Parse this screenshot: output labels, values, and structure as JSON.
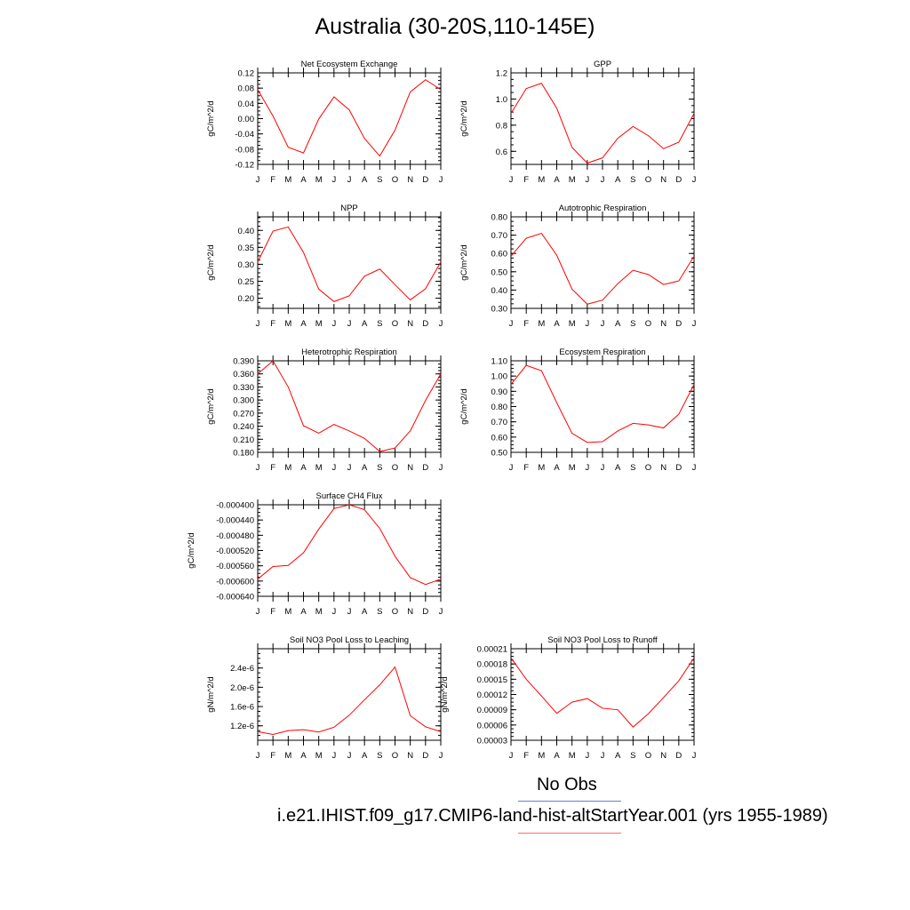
{
  "title": "Australia (30-20S,110-145E)",
  "legend": {
    "obs_label": "No Obs",
    "run_label": "i.e21.IHIST.f09_g17.CMIP6-land-hist-altStartYear.001 (yrs 1955-1989)",
    "obs_color": "#6b7bd6",
    "run_color": "#ff0000"
  },
  "chart_data": [
    {
      "type": "line",
      "title": "Net Ecosystem Exchange",
      "ylabel": "gC/m^2/d",
      "xlabels": [
        "J",
        "F",
        "M",
        "A",
        "M",
        "J",
        "J",
        "A",
        "S",
        "O",
        "N",
        "D",
        "J"
      ],
      "ylim": [
        -0.12,
        0.12
      ],
      "yticks": [
        -0.12,
        -0.08,
        -0.04,
        0.0,
        0.04,
        0.08,
        0.12
      ],
      "ytick_labels": [
        "-0.12",
        "-0.08",
        "-0.04",
        "0.00",
        "0.04",
        "0.08",
        "0.12"
      ],
      "series": [
        {
          "values": [
            0.076,
            0.007,
            -0.075,
            -0.09,
            -0.001,
            0.057,
            0.023,
            -0.052,
            -0.098,
            -0.03,
            0.07,
            0.102,
            0.076
          ]
        }
      ]
    },
    {
      "type": "line",
      "title": "GPP",
      "ylabel": "gC/m^2/d",
      "xlabels": [
        "J",
        "F",
        "M",
        "A",
        "M",
        "J",
        "J",
        "A",
        "S",
        "O",
        "N",
        "D",
        "J"
      ],
      "ylim": [
        0.5,
        1.2
      ],
      "yticks": [
        0.6,
        0.8,
        1.0,
        1.2
      ],
      "ytick_labels": [
        "0.6",
        "0.8",
        "1.0",
        "1.2"
      ],
      "series": [
        {
          "values": [
            0.89,
            1.08,
            1.12,
            0.93,
            0.63,
            0.51,
            0.55,
            0.7,
            0.79,
            0.72,
            0.62,
            0.67,
            0.89
          ]
        }
      ]
    },
    {
      "type": "line",
      "title": "NPP",
      "ylabel": "gC/m^2/d",
      "xlabels": [
        "J",
        "F",
        "M",
        "A",
        "M",
        "J",
        "J",
        "A",
        "S",
        "O",
        "N",
        "D",
        "J"
      ],
      "ylim": [
        0.17,
        0.44
      ],
      "yticks": [
        0.2,
        0.25,
        0.3,
        0.35,
        0.4
      ],
      "ytick_labels": [
        "0.20",
        "0.25",
        "0.30",
        "0.35",
        "0.40"
      ],
      "series": [
        {
          "values": [
            0.307,
            0.398,
            0.41,
            0.335,
            0.227,
            0.19,
            0.207,
            0.265,
            0.286,
            0.24,
            0.195,
            0.228,
            0.307
          ]
        }
      ]
    },
    {
      "type": "line",
      "title": "Autotrophic Respiration",
      "ylabel": "gC/m^2/d",
      "xlabels": [
        "J",
        "F",
        "M",
        "A",
        "M",
        "J",
        "J",
        "A",
        "S",
        "O",
        "N",
        "D",
        "J"
      ],
      "ylim": [
        0.3,
        0.8
      ],
      "yticks": [
        0.3,
        0.4,
        0.5,
        0.6,
        0.7,
        0.8
      ],
      "ytick_labels": [
        "0.30",
        "0.40",
        "0.50",
        "0.60",
        "0.70",
        "0.80"
      ],
      "series": [
        {
          "values": [
            0.585,
            0.683,
            0.71,
            0.59,
            0.405,
            0.323,
            0.345,
            0.435,
            0.508,
            0.485,
            0.43,
            0.45,
            0.585
          ]
        }
      ]
    },
    {
      "type": "line",
      "title": "Heterotrophic Respiration",
      "ylabel": "gC/m^2/d",
      "xlabels": [
        "J",
        "F",
        "M",
        "A",
        "M",
        "J",
        "J",
        "A",
        "S",
        "O",
        "N",
        "D",
        "J"
      ],
      "ylim": [
        0.18,
        0.39
      ],
      "yticks": [
        0.18,
        0.21,
        0.24,
        0.27,
        0.3,
        0.33,
        0.36,
        0.39
      ],
      "ytick_labels": [
        "0.180",
        "0.210",
        "0.240",
        "0.270",
        "0.300",
        "0.330",
        "0.360",
        "0.390"
      ],
      "series": [
        {
          "values": [
            0.36,
            0.39,
            0.33,
            0.241,
            0.224,
            0.244,
            0.229,
            0.212,
            0.182,
            0.19,
            0.229,
            0.299,
            0.36
          ]
        }
      ]
    },
    {
      "type": "line",
      "title": "Ecosystem Respiration",
      "ylabel": "gC/m^2/d",
      "xlabels": [
        "J",
        "F",
        "M",
        "A",
        "M",
        "J",
        "J",
        "A",
        "S",
        "O",
        "N",
        "D",
        "J"
      ],
      "ylim": [
        0.5,
        1.1
      ],
      "yticks": [
        0.5,
        0.6,
        0.7,
        0.8,
        0.9,
        1.0,
        1.1
      ],
      "ytick_labels": [
        "0.50",
        "0.60",
        "0.70",
        "0.80",
        "0.90",
        "1.00",
        "1.10"
      ],
      "series": [
        {
          "values": [
            0.945,
            1.07,
            1.035,
            0.825,
            0.625,
            0.565,
            0.57,
            0.64,
            0.69,
            0.68,
            0.66,
            0.75,
            0.945
          ]
        }
      ]
    },
    {
      "type": "line",
      "title": "Surface CH4 Flux",
      "ylabel": "gC/m^2/d",
      "xlabels": [
        "J",
        "F",
        "M",
        "A",
        "M",
        "J",
        "J",
        "A",
        "S",
        "O",
        "N",
        "D",
        "J"
      ],
      "ylim": [
        -0.00064,
        -0.0004
      ],
      "yticks": [
        -0.00064,
        -0.0006,
        -0.00056,
        -0.00052,
        -0.00048,
        -0.00044,
        -0.0004
      ],
      "ytick_labels": [
        "-0.000640",
        "-0.000600",
        "-0.000560",
        "-0.000520",
        "-0.000480",
        "-0.000440",
        "-0.000400"
      ],
      "series": [
        {
          "values": [
            -0.000595,
            -0.000562,
            -0.000559,
            -0.000526,
            -0.000464,
            -0.00041,
            -0.0004,
            -0.000413,
            -0.000462,
            -0.000535,
            -0.000591,
            -0.000609,
            -0.000595
          ]
        }
      ]
    },
    {
      "type": "line",
      "title": "Soil NO3 Pool Loss to Leaching",
      "ylabel": "gN/m^2/d",
      "xlabels": [
        "J",
        "F",
        "M",
        "A",
        "M",
        "J",
        "J",
        "A",
        "S",
        "O",
        "N",
        "D",
        "J"
      ],
      "ylim": [
        9e-07,
        2.8e-06
      ],
      "yticks": [
        1.2e-06,
        1.6e-06,
        2e-06,
        2.4e-06
      ],
      "ytick_labels": [
        "1.2e-6",
        "1.6e-6",
        "2.0e-6",
        "2.4e-6"
      ],
      "series": [
        {
          "values": [
            1.08e-06,
            1.02e-06,
            1.1e-06,
            1.12e-06,
            1.07e-06,
            1.17e-06,
            1.42e-06,
            1.74e-06,
            2.05e-06,
            2.42e-06,
            1.41e-06,
            1.18e-06,
            1.08e-06
          ]
        }
      ]
    },
    {
      "type": "line",
      "title": "Soil NO3 Pool Loss to Runoff",
      "ylabel": "gN/m^2/d",
      "xlabels": [
        "J",
        "F",
        "M",
        "A",
        "M",
        "J",
        "J",
        "A",
        "S",
        "O",
        "N",
        "D",
        "J"
      ],
      "ylim": [
        3e-05,
        0.00021
      ],
      "yticks": [
        3e-05,
        6e-05,
        9e-05,
        0.00012,
        0.00015,
        0.00018,
        0.00021
      ],
      "ytick_labels": [
        "0.00003",
        "0.00006",
        "0.00009",
        "0.00012",
        "0.00015",
        "0.00018",
        "0.00021"
      ],
      "series": [
        {
          "values": [
            0.000192,
            0.00015,
            0.000117,
            8.3e-05,
            0.000105,
            0.000112,
            9.3e-05,
            9e-05,
            5.6e-05,
            8.2e-05,
            0.000114,
            0.000147,
            0.000192
          ]
        }
      ]
    }
  ]
}
